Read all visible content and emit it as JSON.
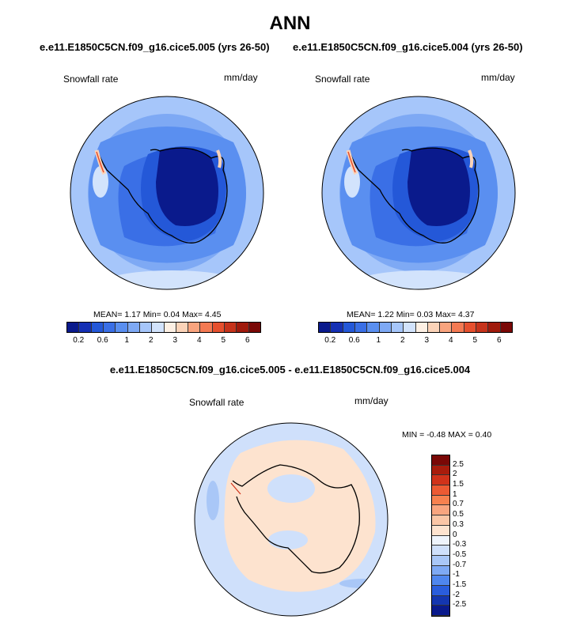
{
  "title": "ANN",
  "top_subtitle_left": "e.e11.E1850C5CN.f09_g16.cice5.005 (yrs 26-50)",
  "top_subtitle_right": "e.e11.E1850C5CN.f09_g16.cice5.004 (yrs 26-50)",
  "panel_left": {
    "label": "Snowfall rate",
    "units": "mm/day",
    "stats": {
      "mean_label": "MEAN=",
      "mean": "1.17",
      "min_label": "Min=",
      "min": "0.04",
      "max_label": "Max=",
      "max": "4.45"
    }
  },
  "panel_right": {
    "label": "Snowfall rate",
    "units": "mm/day",
    "stats": {
      "mean_label": "MEAN=",
      "mean": "1.22",
      "min_label": "Min=",
      "min": "0.03",
      "max_label": "Max=",
      "max": "4.37"
    }
  },
  "abs_colorbar": {
    "colors": [
      "#0a1a8c",
      "#1530b4",
      "#2458d8",
      "#3a6fe6",
      "#5a8ff0",
      "#7ea9f4",
      "#a6c6fa",
      "#d2e3fc",
      "#fdf0e4",
      "#fbd3b8",
      "#f9a47e",
      "#f47a53",
      "#e6502e",
      "#c6331b",
      "#a01a0c",
      "#7a0806"
    ],
    "ticks": [
      "0.2",
      "0.6",
      "1",
      "2",
      "3",
      "4",
      "5",
      "6"
    ]
  },
  "diff_title": "e.e11.E1850C5CN.f09_g16.cice5.005 - e.e11.E1850C5CN.f09_g16.cice5.004",
  "panel_diff": {
    "label": "Snowfall rate",
    "units": "mm/day",
    "stats_text": "MIN = -0.48 MAX = 0.40"
  },
  "diff_colorbar": {
    "colors": [
      "#7a0806",
      "#a81c0c",
      "#d0321a",
      "#ec5a33",
      "#f7814f",
      "#f9a57f",
      "#fbc6a6",
      "#fde3cf",
      "#eef4fc",
      "#cfe0fb",
      "#a9c7f7",
      "#7ea9f4",
      "#4f86ee",
      "#2a5ddc",
      "#1436b0",
      "#0a1a8c"
    ],
    "ticks": [
      "2.5",
      "2",
      "1.5",
      "1",
      "0.7",
      "0.5",
      "0.3",
      "0",
      "-0.3",
      "-0.5",
      "-0.7",
      "-1",
      "-1.5",
      "-2",
      "-2.5"
    ]
  }
}
